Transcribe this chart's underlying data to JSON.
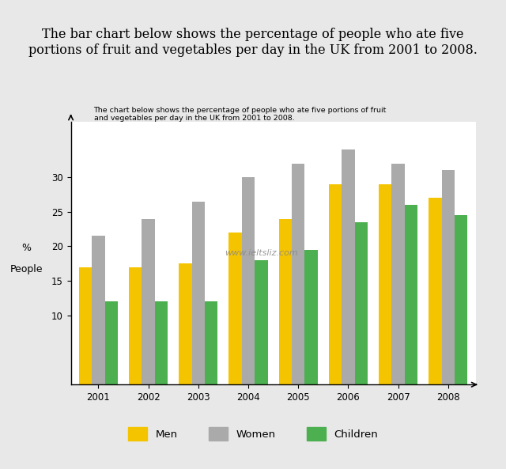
{
  "title_top": "The bar chart below shows the percentage of people who ate five\nportions of fruit and vegetables per day in the UK from 2001 to 2008.",
  "chart_subtitle": "The chart below shows the percentage of people who ate five portions of fruit\nand vegetables per day in the UK from 2001 to 2008.",
  "years": [
    "2001",
    "2002",
    "2003",
    "2004",
    "2005",
    "2006",
    "2007",
    "2008"
  ],
  "men": [
    17,
    17,
    17.5,
    22,
    24,
    29,
    29,
    27
  ],
  "women": [
    21.5,
    24,
    26.5,
    30,
    32,
    34,
    32,
    31
  ],
  "children": [
    12,
    12,
    12,
    18,
    19.5,
    23.5,
    26,
    24.5
  ],
  "men_color": "#F5C400",
  "women_color": "#AAAAAA",
  "children_color": "#4CAF50",
  "ylabel_line1": "%",
  "ylabel_line2": "People",
  "ylim": [
    0,
    38
  ],
  "yticks": [
    10,
    15,
    20,
    25,
    30
  ],
  "bg_color": "#E8E8E8",
  "bg_chart": "#FFFFFF",
  "watermark": "www.ieltsliz.com"
}
